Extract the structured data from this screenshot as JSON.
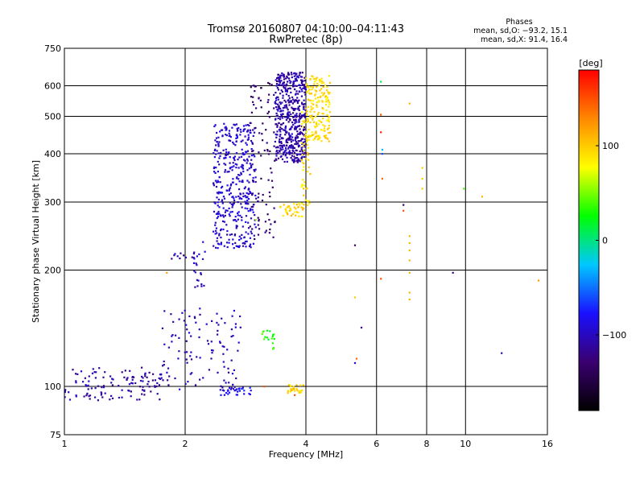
{
  "chart_data": {
    "type": "scatter",
    "title": "Tromsø 20160807 04:10:00–04:11:43",
    "subtitle": "RwPretec (8p)",
    "xlabel": "Frequency [MHz]",
    "ylabel": "Stationary phase Virtual Height [km]",
    "xscale": "log",
    "yscale": "log",
    "xlim": [
      1,
      16
    ],
    "ylim": [
      75,
      750
    ],
    "xticks": [
      1,
      2,
      4,
      6,
      8,
      10,
      16
    ],
    "xtick_labels": [
      "1",
      "2",
      "4",
      "6",
      "8",
      "10",
      "16"
    ],
    "yticks": [
      75,
      100,
      200,
      300,
      400,
      500,
      600,
      750
    ],
    "ytick_labels": [
      "75",
      "100",
      "200",
      "300",
      "400",
      "500",
      "600",
      "750"
    ],
    "grid": true,
    "phases_info": {
      "title": "Phases",
      "line_o": "mean, sd,O: −93.2, 15.1",
      "line_x": "mean, sd,X:  91.4, 16.4"
    },
    "colorbar": {
      "label": "[deg]",
      "range": [
        -180,
        180
      ],
      "ticks": [
        100,
        0,
        -100
      ],
      "tick_labels": [
        "100",
        "0",
        "−100"
      ],
      "colormap": [
        "#000000",
        "#3a0070",
        "#1a10ff",
        "#00c8ff",
        "#00ff00",
        "#ffff00",
        "#ff8800",
        "#ff0000"
      ]
    },
    "clusters": [
      {
        "name": "E-region trace low",
        "x_range": [
          1.0,
          1.75
        ],
        "y_range": [
          92,
          112
        ],
        "phase": -110,
        "n": 120
      },
      {
        "name": "E-region trace rising",
        "x_range": [
          1.75,
          2.75
        ],
        "y_range": [
          97,
          160
        ],
        "phase": -105,
        "n": 110
      },
      {
        "name": "E-region trace 2.5-3 MHz",
        "x_range": [
          2.45,
          2.95
        ],
        "y_range": [
          95,
          100
        ],
        "phase": -80,
        "n": 30
      },
      {
        "name": "Sporadic 2.2 MHz",
        "x_range": [
          1.85,
          2.2
        ],
        "y_range": [
          214,
          222
        ],
        "phase": -110,
        "n": 12
      },
      {
        "name": "Cusp near 2.1-2.2 MHz",
        "x_range": [
          2.1,
          2.25
        ],
        "y_range": [
          170,
          240
        ],
        "phase": -100,
        "n": 20
      },
      {
        "name": "F1 cluster",
        "x_range": [
          2.35,
          3.0
        ],
        "y_range": [
          228,
          480
        ],
        "phase": -95,
        "n": 420
      },
      {
        "name": "F1 upper trace",
        "x_range": [
          2.9,
          3.35
        ],
        "y_range": [
          240,
          620
        ],
        "phase": -130,
        "n": 90
      },
      {
        "name": "O-mode F2 cluster",
        "x_range": [
          3.35,
          4.0
        ],
        "y_range": [
          380,
          650
        ],
        "phase": -108,
        "n": 520
      },
      {
        "name": "X-mode lower trace",
        "x_range": [
          3.45,
          3.95
        ],
        "y_range": [
          275,
          300
        ],
        "phase": 95,
        "n": 40
      },
      {
        "name": "X-mode rising trace",
        "x_range": [
          3.9,
          4.1
        ],
        "y_range": [
          290,
          520
        ],
        "phase": 90,
        "n": 50
      },
      {
        "name": "X-mode F2 cluster",
        "x_range": [
          4.0,
          4.6
        ],
        "y_range": [
          430,
          640
        ],
        "phase": 92,
        "n": 180
      },
      {
        "name": "X-mode E trace",
        "x_range": [
          3.6,
          3.95
        ],
        "y_range": [
          96,
          101
        ],
        "phase": 95,
        "n": 28
      },
      {
        "name": "Green patch 3.2 MHz",
        "x_range": [
          3.1,
          3.35
        ],
        "y_range": [
          125,
          140
        ],
        "phase": 30,
        "n": 18
      }
    ],
    "scatter_points": [
      {
        "x": 1.8,
        "y": 197,
        "phase": 120
      },
      {
        "x": 3.15,
        "y": 100,
        "phase": 150
      },
      {
        "x": 3.0,
        "y": 270,
        "phase": 60
      },
      {
        "x": 5.3,
        "y": 232,
        "phase": -130
      },
      {
        "x": 5.3,
        "y": 170,
        "phase": 100
      },
      {
        "x": 5.5,
        "y": 142,
        "phase": -120
      },
      {
        "x": 5.3,
        "y": 115,
        "phase": -90
      },
      {
        "x": 5.35,
        "y": 118,
        "phase": 140
      },
      {
        "x": 6.15,
        "y": 615,
        "phase": 10
      },
      {
        "x": 6.15,
        "y": 505,
        "phase": 150
      },
      {
        "x": 6.15,
        "y": 455,
        "phase": 170
      },
      {
        "x": 6.2,
        "y": 410,
        "phase": -30
      },
      {
        "x": 6.2,
        "y": 400,
        "phase": -60
      },
      {
        "x": 6.2,
        "y": 345,
        "phase": 140
      },
      {
        "x": 6.15,
        "y": 190,
        "phase": 150
      },
      {
        "x": 7.0,
        "y": 295,
        "phase": -140
      },
      {
        "x": 7.0,
        "y": 285,
        "phase": 150
      },
      {
        "x": 7.25,
        "y": 540,
        "phase": 110
      },
      {
        "x": 7.25,
        "y": 245,
        "phase": 110
      },
      {
        "x": 7.25,
        "y": 235,
        "phase": 110
      },
      {
        "x": 7.25,
        "y": 225,
        "phase": 110
      },
      {
        "x": 7.25,
        "y": 212,
        "phase": 110
      },
      {
        "x": 7.25,
        "y": 197,
        "phase": 110
      },
      {
        "x": 7.25,
        "y": 175,
        "phase": 110
      },
      {
        "x": 7.25,
        "y": 168,
        "phase": 110
      },
      {
        "x": 7.8,
        "y": 368,
        "phase": 100
      },
      {
        "x": 7.8,
        "y": 345,
        "phase": 100
      },
      {
        "x": 7.8,
        "y": 325,
        "phase": 100
      },
      {
        "x": 9.3,
        "y": 197,
        "phase": -120
      },
      {
        "x": 9.9,
        "y": 325,
        "phase": 40
      },
      {
        "x": 11.0,
        "y": 310,
        "phase": 110
      },
      {
        "x": 12.3,
        "y": 122,
        "phase": -110
      },
      {
        "x": 15.2,
        "y": 188,
        "phase": 120
      },
      {
        "x": 3.75,
        "y": 95,
        "phase": 150
      }
    ]
  }
}
